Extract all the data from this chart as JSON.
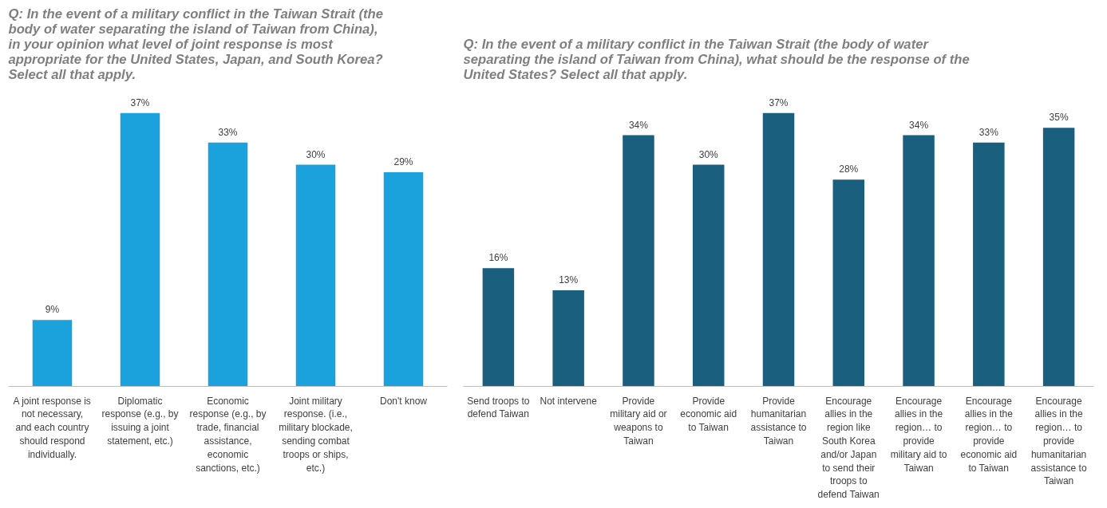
{
  "chart_data": [
    {
      "type": "bar",
      "title": "Q: In the event of a military conflict in the Taiwan Strait (the\nbody of water separating the island of Taiwan from China),\nin your opinion what level of joint response is most\nappropriate for the United States, Japan, and South Korea?\nSelect all that apply.",
      "categories": [
        "A joint response is\nnot necessary,\nand each country\nshould respond\nindividually.",
        "Diplomatic\nresponse (e.g., by\nissuing a joint\nstatement, etc.)",
        "Economic\nresponse (e.g., by\ntrade, financial\nassistance,\neconomic\nsanctions, etc.)",
        "Joint military\nresponse. (i.e.,\nmilitary blockade,\nsending combat\ntroops or ships,\netc.)",
        "Don't know"
      ],
      "values": [
        9,
        37,
        33,
        30,
        29
      ],
      "value_labels": [
        "9%",
        "37%",
        "33%",
        "30%",
        "29%"
      ],
      "color": "#1ba1dc",
      "grid": false
    },
    {
      "type": "bar",
      "title": "Q: In the event of a military conflict in the Taiwan Strait (the body of water\nseparating the island of Taiwan from China), what should be the response of the\nUnited States? Select all that apply.",
      "categories": [
        "Send troops to\ndefend Taiwan",
        "Not intervene",
        "Provide\nmilitary aid or\nweapons to\nTaiwan",
        "Provide\neconomic aid\nto Taiwan",
        "Provide\nhumanitarian\nassistance to\nTaiwan",
        "Encourage\nallies in the\nregion like\nSouth Korea\nand/or Japan\nto send their\ntroops to\ndefend Taiwan",
        "Encourage\nallies in the\nregion… to\nprovide\nmilitary aid to\nTaiwan",
        "Encourage\nallies in the\nregion… to\nprovide\neconomic aid\nto Taiwan",
        "Encourage\nallies in the\nregion… to\nprovide\nhumanitarian\nassistance to\nTaiwan"
      ],
      "values": [
        16,
        13,
        34,
        30,
        37,
        28,
        34,
        33,
        35
      ],
      "value_labels": [
        "16%",
        "13%",
        "34%",
        "30%",
        "37%",
        "28%",
        "34%",
        "33%",
        "35%"
      ],
      "color": "#1a5f7e",
      "grid": false
    }
  ]
}
